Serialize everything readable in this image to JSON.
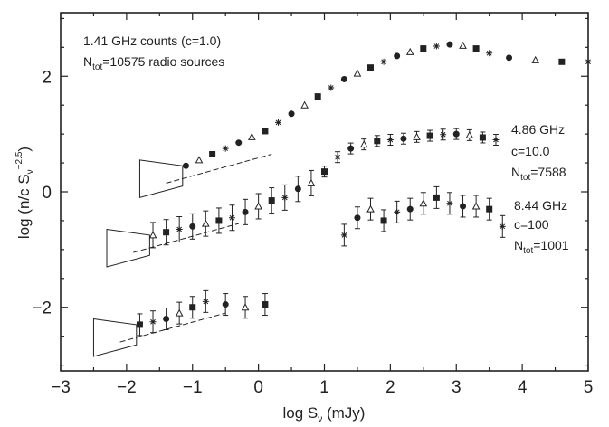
{
  "chart_data": {
    "type": "scatter",
    "xlabel": "log S_ν (mJy)",
    "ylabel": "log (n/c S_ν^−2.5)",
    "xlim": [
      -3,
      5
    ],
    "ylim": [
      -3.1,
      3.1
    ],
    "x_ticks": [
      -3,
      -2,
      -1,
      0,
      1,
      2,
      3,
      4,
      5
    ],
    "y_ticks": [
      -2,
      0,
      2
    ],
    "x_tick_labels": [
      "−3",
      "−2",
      "−1",
      "0",
      "1",
      "2",
      "3",
      "4",
      "5"
    ],
    "y_tick_labels": [
      "−2",
      "0",
      "2"
    ],
    "annotations": {
      "a141_line1": "1.41 GHz counts (c=1.0)",
      "a141_line2_main": "N",
      "a141_line2_sub": "tot",
      "a141_line2_rest": "=10575 radio sources",
      "a486_line1": "4.86 GHz",
      "a486_line2": "c=10.0",
      "a486_line3_main": "N",
      "a486_line3_sub": "tot",
      "a486_line3_rest": "=7588",
      "a844_line1": "8.44 GHz",
      "a844_line2": "c=100",
      "a844_line3_main": "N",
      "a844_line3_sub": "tot",
      "a844_line3_rest": "=1001"
    },
    "series": [
      {
        "freq": "1.41 GHz",
        "c": 1.0,
        "x": [
          -1.1,
          -0.9,
          -0.7,
          -0.5,
          -0.3,
          -0.1,
          0.1,
          0.3,
          0.5,
          0.7,
          0.9,
          1.1,
          1.3,
          1.5,
          1.7,
          1.9,
          2.1,
          2.3,
          2.5,
          2.7,
          2.9,
          3.1,
          3.3,
          3.5,
          3.8,
          4.2,
          4.6,
          5.0
        ],
        "y": [
          0.45,
          0.55,
          0.65,
          0.75,
          0.85,
          0.95,
          1.05,
          1.2,
          1.35,
          1.5,
          1.65,
          1.8,
          1.95,
          2.05,
          2.15,
          2.25,
          2.35,
          2.42,
          2.48,
          2.52,
          2.55,
          2.53,
          2.48,
          2.4,
          2.32,
          2.28,
          2.25,
          2.25
        ]
      },
      {
        "freq": "4.86 GHz",
        "c": 10.0,
        "x": [
          -1.6,
          -1.4,
          -1.2,
          -1.0,
          -0.8,
          -0.6,
          -0.4,
          -0.2,
          0.0,
          0.2,
          0.4,
          0.6,
          0.8,
          1.0,
          1.2,
          1.4,
          1.6,
          1.8,
          2.0,
          2.2,
          2.4,
          2.6,
          2.8,
          3.0,
          3.2,
          3.4,
          3.6
        ],
        "y": [
          -0.75,
          -0.7,
          -0.65,
          -0.6,
          -0.55,
          -0.5,
          -0.45,
          -0.35,
          -0.25,
          -0.15,
          -0.1,
          0.05,
          0.15,
          0.35,
          0.6,
          0.75,
          0.82,
          0.88,
          0.9,
          0.92,
          0.95,
          0.97,
          0.99,
          1.0,
          0.98,
          0.94,
          0.9
        ]
      },
      {
        "freq": "8.44 GHz",
        "c": 100,
        "x": [
          -1.8,
          -1.6,
          -1.4,
          -1.2,
          -1.0,
          -0.8,
          -0.5,
          -0.2,
          0.1,
          1.3,
          1.5,
          1.7,
          1.9,
          2.1,
          2.3,
          2.5,
          2.7,
          2.9,
          3.1,
          3.3,
          3.5,
          3.7
        ],
        "y": [
          -2.3,
          -2.25,
          -2.2,
          -2.1,
          -2.0,
          -1.9,
          -1.95,
          -2.0,
          -1.95,
          -0.75,
          -0.45,
          -0.3,
          -0.5,
          -0.35,
          -0.3,
          -0.2,
          -0.1,
          -0.2,
          -0.25,
          -0.25,
          -0.3,
          -0.6
        ]
      }
    ]
  }
}
